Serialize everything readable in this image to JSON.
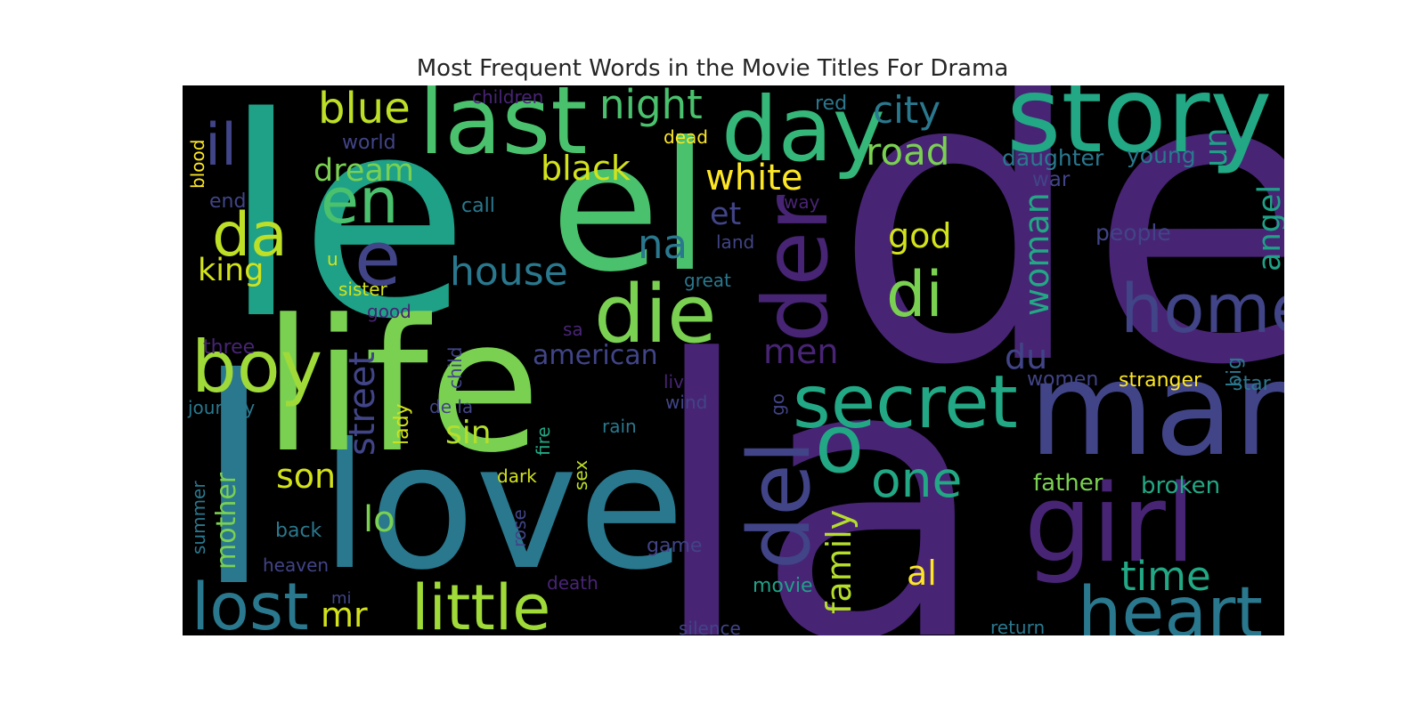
{
  "chart_data": {
    "type": "wordcloud",
    "title": "Most Frequent Words in the Movie Titles For Drama",
    "background": "#000000",
    "colormap": "viridis",
    "words": [
      {
        "text": "de",
        "color": "#482475"
      },
      {
        "text": "la",
        "color": "#482475"
      },
      {
        "text": "le",
        "color": "#1fa187"
      },
      {
        "text": "love",
        "color": "#2a788e"
      },
      {
        "text": "l",
        "color": "#2a788e"
      },
      {
        "text": "life",
        "color": "#7ad151"
      },
      {
        "text": "el",
        "color": "#4ac16d"
      },
      {
        "text": "story",
        "color": "#22a884"
      },
      {
        "text": "man",
        "color": "#414487"
      },
      {
        "text": "day",
        "color": "#35b779"
      },
      {
        "text": "last",
        "color": "#4ac16d"
      },
      {
        "text": "girl",
        "color": "#482475"
      },
      {
        "text": "heart",
        "color": "#2a788e"
      },
      {
        "text": "der",
        "color": "#482475"
      },
      {
        "text": "del",
        "color": "#414487"
      },
      {
        "text": "die",
        "color": "#7ad151"
      },
      {
        "text": "secret",
        "color": "#22a884"
      },
      {
        "text": "home",
        "color": "#414487"
      },
      {
        "text": "o",
        "color": "#22a884"
      },
      {
        "text": "little",
        "color": "#a0da39"
      },
      {
        "text": "lost",
        "color": "#2a788e"
      },
      {
        "text": "boy",
        "color": "#a0da39"
      },
      {
        "text": "en",
        "color": "#4ac16d"
      },
      {
        "text": "e",
        "color": "#414487"
      },
      {
        "text": "da",
        "color": "#bddf26"
      },
      {
        "text": "il",
        "color": "#414487"
      },
      {
        "text": "blue",
        "color": "#bddf26"
      },
      {
        "text": "night",
        "color": "#4ac16d"
      },
      {
        "text": "city",
        "color": "#2a788e"
      },
      {
        "text": "road",
        "color": "#7ad151"
      },
      {
        "text": "one",
        "color": "#22a884"
      },
      {
        "text": "di",
        "color": "#7ad151"
      },
      {
        "text": "time",
        "color": "#22a884"
      },
      {
        "text": "house",
        "color": "#2a788e"
      },
      {
        "text": "white",
        "color": "#fde725"
      },
      {
        "text": "black",
        "color": "#d2e21b"
      },
      {
        "text": "dream",
        "color": "#7ad151"
      },
      {
        "text": "king",
        "color": "#d2e21b"
      },
      {
        "text": "son",
        "color": "#d2e21b"
      },
      {
        "text": "lo",
        "color": "#7ad151"
      },
      {
        "text": "mr",
        "color": "#d2e21b"
      },
      {
        "text": "street",
        "color": "#414487"
      },
      {
        "text": "sin",
        "color": "#b5de2b"
      },
      {
        "text": "na",
        "color": "#2a788e"
      },
      {
        "text": "woman",
        "color": "#22a884"
      },
      {
        "text": "god",
        "color": "#d2e21b"
      },
      {
        "text": "un",
        "color": "#1fa187"
      },
      {
        "text": "angel",
        "color": "#1fa187"
      },
      {
        "text": "men",
        "color": "#482475"
      },
      {
        "text": "du",
        "color": "#414487"
      },
      {
        "text": "family",
        "color": "#b5de2b"
      },
      {
        "text": "american",
        "color": "#414487"
      },
      {
        "text": "mother",
        "color": "#7ad151"
      },
      {
        "text": "al",
        "color": "#fde725"
      },
      {
        "text": "et",
        "color": "#414487"
      },
      {
        "text": "father",
        "color": "#7ad151"
      },
      {
        "text": "broken",
        "color": "#22a884"
      },
      {
        "text": "people",
        "color": "#414487"
      },
      {
        "text": "daughter",
        "color": "#2a788e"
      },
      {
        "text": "young",
        "color": "#2a788e"
      },
      {
        "text": "war",
        "color": "#414487"
      },
      {
        "text": "stranger",
        "color": "#fde725"
      },
      {
        "text": "big",
        "color": "#2a788e"
      },
      {
        "text": "star",
        "color": "#2a788e"
      },
      {
        "text": "women",
        "color": "#414487"
      },
      {
        "text": "world",
        "color": "#414487"
      },
      {
        "text": "end",
        "color": "#414487"
      },
      {
        "text": "call",
        "color": "#2a788e"
      },
      {
        "text": "children",
        "color": "#482475"
      },
      {
        "text": "red",
        "color": "#2a788e"
      },
      {
        "text": "dead",
        "color": "#fde725"
      },
      {
        "text": "way",
        "color": "#482475"
      },
      {
        "text": "land",
        "color": "#414487"
      },
      {
        "text": "great",
        "color": "#2a788e"
      },
      {
        "text": "sister",
        "color": "#d2e21b"
      },
      {
        "text": "good",
        "color": "#482475"
      },
      {
        "text": "u",
        "color": "#d2e21b"
      },
      {
        "text": "sa",
        "color": "#482475"
      },
      {
        "text": "three",
        "color": "#482475"
      },
      {
        "text": "journey",
        "color": "#2a788e"
      },
      {
        "text": "child",
        "color": "#414487"
      },
      {
        "text": "de la",
        "color": "#414487"
      },
      {
        "text": "lady",
        "color": "#d2e21b"
      },
      {
        "text": "fire",
        "color": "#22a884"
      },
      {
        "text": "live",
        "color": "#482475"
      },
      {
        "text": "wind",
        "color": "#414487"
      },
      {
        "text": "go",
        "color": "#414487"
      },
      {
        "text": "rain",
        "color": "#2a788e"
      },
      {
        "text": "dark",
        "color": "#d2e21b"
      },
      {
        "text": "sex",
        "color": "#bddf26"
      },
      {
        "text": "rose",
        "color": "#414487"
      },
      {
        "text": "back",
        "color": "#2a788e"
      },
      {
        "text": "game",
        "color": "#414487"
      },
      {
        "text": "summer",
        "color": "#2a788e"
      },
      {
        "text": "heaven",
        "color": "#414487"
      },
      {
        "text": "mi",
        "color": "#414487"
      },
      {
        "text": "death",
        "color": "#482475"
      },
      {
        "text": "movie",
        "color": "#1fa187"
      },
      {
        "text": "blood",
        "color": "#fde725"
      },
      {
        "text": "silence",
        "color": "#414487"
      },
      {
        "text": "return",
        "color": "#2a788e"
      }
    ]
  }
}
